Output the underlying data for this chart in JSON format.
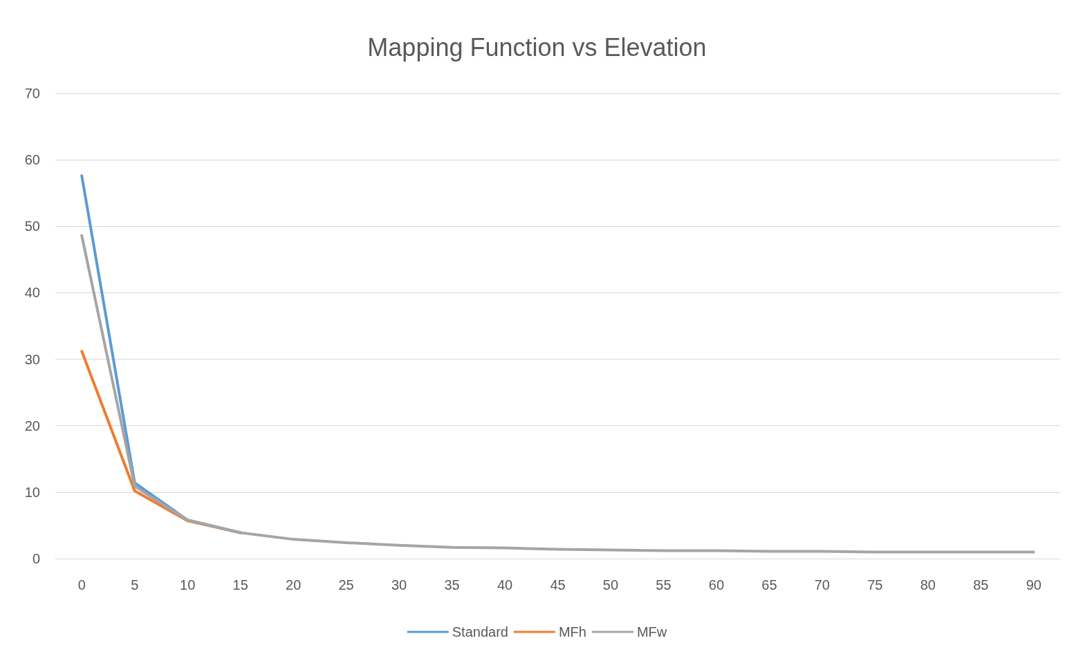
{
  "chart_data": {
    "type": "line",
    "title": "Mapping Function vs Elevation",
    "categories": [
      "0",
      "5",
      "10",
      "15",
      "20",
      "25",
      "30",
      "35",
      "40",
      "45",
      "50",
      "55",
      "60",
      "65",
      "70",
      "75",
      "80",
      "85",
      "90"
    ],
    "series": [
      {
        "name": "Standard",
        "color": "#5b9bd5",
        "values": [
          57.6,
          11.4,
          5.8,
          3.9,
          null,
          null,
          null,
          null,
          null,
          null,
          null,
          null,
          null,
          null,
          null,
          null,
          null,
          null,
          null
        ]
      },
      {
        "name": "MFh",
        "color": "#ed7d31",
        "values": [
          31.2,
          10.2,
          5.7,
          3.9,
          null,
          null,
          null,
          null,
          null,
          null,
          null,
          null,
          null,
          null,
          null,
          null,
          null,
          null,
          null
        ]
      },
      {
        "name": "MFw",
        "color": "#a5a5a5",
        "values": [
          48.6,
          10.9,
          5.8,
          3.9,
          2.9,
          2.4,
          2.0,
          1.7,
          1.6,
          1.4,
          1.3,
          1.2,
          1.2,
          1.1,
          1.1,
          1.0,
          1.0,
          1.0,
          1.0
        ]
      }
    ],
    "ylim": [
      0,
      70
    ],
    "yticks": [
      0,
      10,
      20,
      30,
      40,
      50,
      60,
      70
    ],
    "grid": "y",
    "legend": "bottom",
    "marker": "none",
    "line_style": "solid"
  }
}
